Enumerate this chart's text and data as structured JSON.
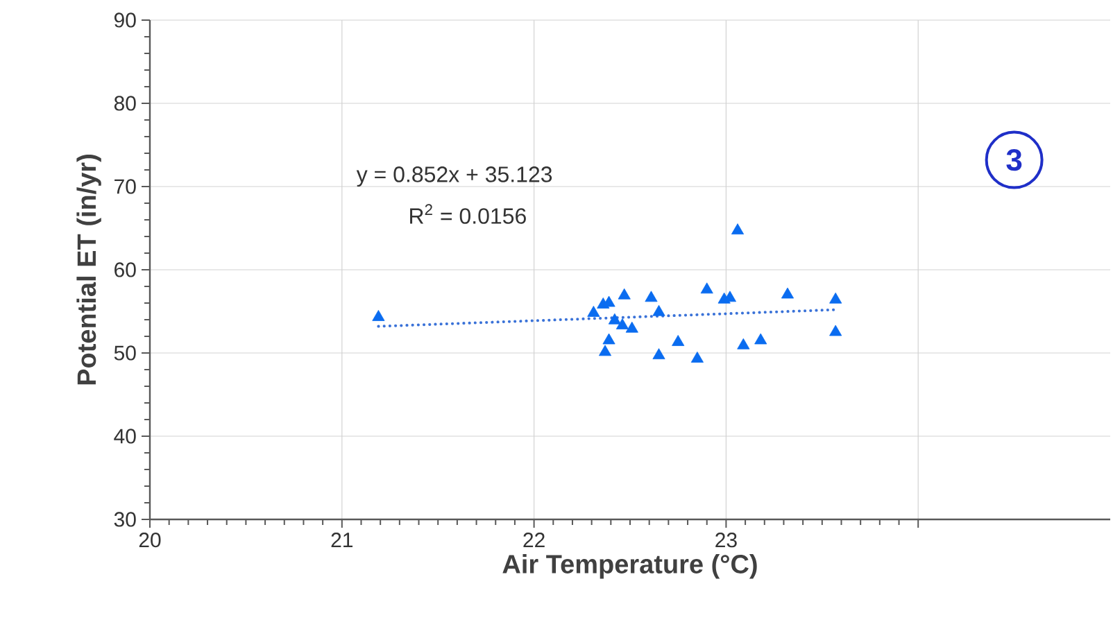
{
  "chart_data": {
    "type": "scatter",
    "xlabel": "Air Temperature (°C)",
    "ylabel": "Potential ET (in/yr)",
    "annotations": [
      "y = 0.852x + 35.123",
      "R$^{2}$ = 0.0156",
      "3"
    ],
    "xlim": [
      20,
      25
    ],
    "ylim": [
      30,
      90
    ],
    "xticks": [
      20,
      21,
      22,
      23,
      {
        "value": 24,
        "label": null
      }
    ],
    "yticks": [
      30,
      40,
      50,
      60,
      70,
      80,
      90
    ],
    "grid": true,
    "series": [
      {
        "marker": "triangle",
        "color": "#0a6cf0",
        "x": [
          21.19,
          22.31,
          22.36,
          22.39,
          22.47,
          22.37,
          22.39,
          22.42,
          22.46,
          22.51,
          22.61,
          22.65,
          22.65,
          22.75,
          22.85,
          22.9,
          22.99,
          23.02,
          23.06,
          23.09,
          23.18,
          23.32,
          23.57,
          23.57
        ],
        "values": [
          54.3,
          54.8,
          55.8,
          56.0,
          56.9,
          50.1,
          51.5,
          53.9,
          53.3,
          52.9,
          56.6,
          54.9,
          49.7,
          51.3,
          49.3,
          57.6,
          56.4,
          56.6,
          64.7,
          50.9,
          51.5,
          57.0,
          56.4,
          52.5
        ]
      },
      {
        "type": "line",
        "marker": "none",
        "color": "#3a72d8",
        "line_style": "dotted",
        "x": [
          21.19,
          23.57
        ],
        "values": [
          53.2,
          55.2
        ]
      }
    ]
  }
}
